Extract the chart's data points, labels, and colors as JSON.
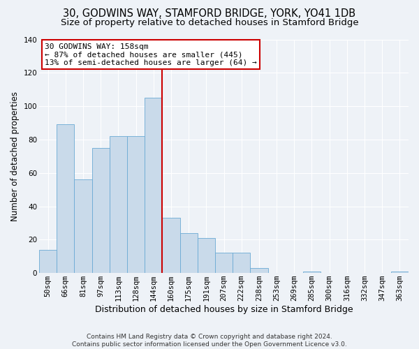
{
  "title1": "30, GODWINS WAY, STAMFORD BRIDGE, YORK, YO41 1DB",
  "title2": "Size of property relative to detached houses in Stamford Bridge",
  "xlabel": "Distribution of detached houses by size in Stamford Bridge",
  "ylabel": "Number of detached properties",
  "footer1": "Contains HM Land Registry data © Crown copyright and database right 2024.",
  "footer2": "Contains public sector information licensed under the Open Government Licence v3.0.",
  "bin_labels": [
    "50sqm",
    "66sqm",
    "81sqm",
    "97sqm",
    "113sqm",
    "128sqm",
    "144sqm",
    "160sqm",
    "175sqm",
    "191sqm",
    "207sqm",
    "222sqm",
    "238sqm",
    "253sqm",
    "269sqm",
    "285sqm",
    "300sqm",
    "316sqm",
    "332sqm",
    "347sqm",
    "363sqm"
  ],
  "bar_heights": [
    14,
    89,
    56,
    75,
    82,
    82,
    105,
    33,
    24,
    21,
    12,
    12,
    3,
    0,
    0,
    1,
    0,
    0,
    0,
    0,
    1
  ],
  "bar_color": "#c9daea",
  "bar_edge_color": "#6aaad4",
  "vline_color": "#cc0000",
  "annotation_text": "30 GODWINS WAY: 158sqm\n← 87% of detached houses are smaller (445)\n13% of semi-detached houses are larger (64) →",
  "annotation_box_color": "#cc0000",
  "background_color": "#eef2f7",
  "ylim": [
    0,
    140
  ],
  "yticks": [
    0,
    20,
    40,
    60,
    80,
    100,
    120,
    140
  ],
  "grid_color": "#ffffff",
  "title1_fontsize": 10.5,
  "title2_fontsize": 9.5,
  "xlabel_fontsize": 9,
  "ylabel_fontsize": 8.5,
  "tick_fontsize": 7.5,
  "footer_fontsize": 6.5
}
